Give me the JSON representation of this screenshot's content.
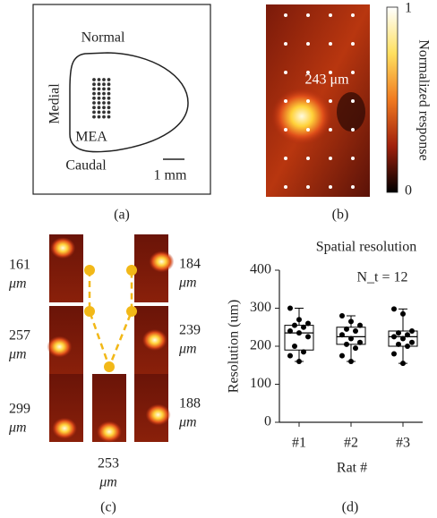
{
  "panel_a": {
    "label": "(a)",
    "top": "Normal",
    "side": "Medial",
    "array": "MEA",
    "bottom": "Caudal",
    "scale": "1 mm"
  },
  "panel_b": {
    "label": "(b)",
    "annotation": "243 μm",
    "colorbar_max": "1",
    "colorbar_min": "0",
    "colorbar_title": "Normalized response"
  },
  "panel_c": {
    "label": "(c)",
    "widths": [
      {
        "number": "161",
        "unit": "μm"
      },
      {
        "number": "257",
        "unit": "μm"
      },
      {
        "number": "299",
        "unit": "μm"
      },
      {
        "number": "184",
        "unit": "μm"
      },
      {
        "number": "239",
        "unit": "μm"
      },
      {
        "number": "188",
        "unit": "μm"
      },
      {
        "number": "253",
        "unit": "μm"
      }
    ]
  },
  "panel_d": {
    "label": "(d)"
  },
  "chart_data": {
    "type": "box",
    "title": "Spatial resolution",
    "annotation": "N_t = 12",
    "y_label": "Resolution (um)",
    "x_label": "Rat #",
    "categories": [
      "#1",
      "#2",
      "#3"
    ],
    "boxes": [
      {
        "min": 160,
        "q1": 190,
        "median": 235,
        "q3": 255,
        "max": 300,
        "points": [
          300,
          270,
          260,
          255,
          250,
          240,
          235,
          225,
          200,
          185,
          175,
          160
        ]
      },
      {
        "min": 160,
        "q1": 205,
        "median": 225,
        "q3": 250,
        "max": 280,
        "points": [
          280,
          265,
          255,
          245,
          240,
          230,
          220,
          210,
          205,
          195,
          175,
          160
        ]
      },
      {
        "min": 155,
        "q1": 200,
        "median": 225,
        "q3": 240,
        "max": 298,
        "points": [
          298,
          285,
          240,
          235,
          230,
          225,
          220,
          210,
          205,
          200,
          180,
          155
        ]
      }
    ],
    "color": "#000000",
    "ylim": [
      0,
      400
    ],
    "yticks": [
      0,
      100,
      200,
      300,
      400
    ]
  }
}
